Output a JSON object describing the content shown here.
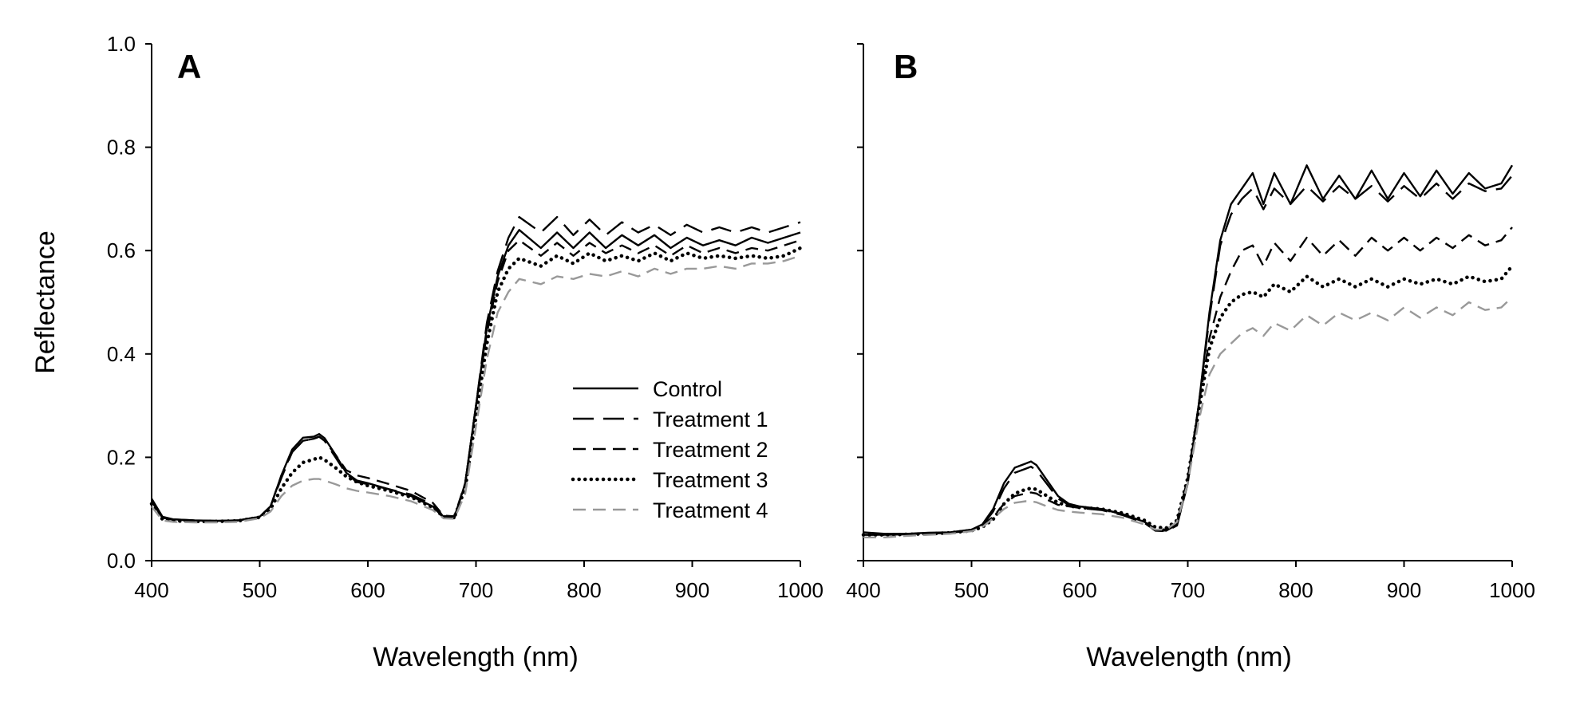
{
  "chart_data": [
    {
      "type": "line",
      "panel_label": "A",
      "xlabel": "Wavelength (nm)",
      "ylabel": "Reflectance",
      "xlim": [
        400,
        1000
      ],
      "ylim": [
        0,
        1.0
      ],
      "xticks": [
        "400",
        "500",
        "600",
        "700",
        "800",
        "900",
        "1000"
      ],
      "yticks": [
        "0.0",
        "0.2",
        "0.4",
        "0.6",
        "0.8",
        "1.0"
      ],
      "legend": {
        "placement": "lower-right",
        "entries": [
          "Control",
          "Treatment 1",
          "Treatment 2",
          "Treatment 3",
          "Treatment 4"
        ]
      },
      "x": [
        400,
        410,
        420,
        440,
        460,
        480,
        500,
        510,
        520,
        530,
        540,
        550,
        555,
        560,
        570,
        580,
        590,
        600,
        620,
        640,
        660,
        670,
        680,
        690,
        700,
        710,
        720,
        730,
        740,
        760,
        775,
        790,
        805,
        820,
        835,
        850,
        865,
        880,
        895,
        910,
        925,
        940,
        955,
        970,
        985,
        1000
      ],
      "series": [
        {
          "name": "Control",
          "style": "solid",
          "color": "#000000",
          "values": [
            0.12,
            0.085,
            0.08,
            0.078,
            0.077,
            0.078,
            0.085,
            0.105,
            0.165,
            0.215,
            0.238,
            0.24,
            0.245,
            0.237,
            0.205,
            0.17,
            0.155,
            0.15,
            0.138,
            0.125,
            0.105,
            0.083,
            0.082,
            0.15,
            0.3,
            0.45,
            0.55,
            0.61,
            0.64,
            0.605,
            0.635,
            0.605,
            0.635,
            0.605,
            0.63,
            0.61,
            0.63,
            0.605,
            0.625,
            0.61,
            0.62,
            0.61,
            0.625,
            0.615,
            0.625,
            0.635
          ]
        },
        {
          "name": "Treatment 1",
          "style": "long-dash",
          "color": "#000000",
          "values": [
            0.115,
            0.083,
            0.08,
            0.078,
            0.077,
            0.078,
            0.085,
            0.105,
            0.16,
            0.21,
            0.232,
            0.236,
            0.24,
            0.232,
            0.2,
            0.168,
            0.152,
            0.148,
            0.138,
            0.128,
            0.108,
            0.085,
            0.084,
            0.15,
            0.3,
            0.46,
            0.56,
            0.625,
            0.665,
            0.635,
            0.665,
            0.63,
            0.66,
            0.63,
            0.655,
            0.635,
            0.65,
            0.63,
            0.65,
            0.635,
            0.645,
            0.635,
            0.645,
            0.635,
            0.645,
            0.655
          ]
        },
        {
          "name": "Treatment 2",
          "style": "dash",
          "color": "#000000",
          "values": [
            0.115,
            0.083,
            0.079,
            0.077,
            0.077,
            0.078,
            0.085,
            0.105,
            0.165,
            0.21,
            0.232,
            0.236,
            0.24,
            0.232,
            0.205,
            0.175,
            0.165,
            0.16,
            0.148,
            0.135,
            0.112,
            0.087,
            0.086,
            0.15,
            0.3,
            0.44,
            0.54,
            0.6,
            0.62,
            0.59,
            0.615,
            0.59,
            0.615,
            0.595,
            0.61,
            0.595,
            0.61,
            0.59,
            0.61,
            0.595,
            0.605,
            0.595,
            0.605,
            0.6,
            0.61,
            0.62
          ]
        },
        {
          "name": "Treatment 3",
          "style": "dotted",
          "color": "#000000",
          "values": [
            0.11,
            0.08,
            0.077,
            0.076,
            0.076,
            0.077,
            0.084,
            0.1,
            0.14,
            0.17,
            0.19,
            0.196,
            0.2,
            0.195,
            0.18,
            0.163,
            0.152,
            0.145,
            0.135,
            0.123,
            0.103,
            0.085,
            0.084,
            0.14,
            0.28,
            0.42,
            0.52,
            0.565,
            0.585,
            0.57,
            0.59,
            0.575,
            0.595,
            0.58,
            0.59,
            0.58,
            0.595,
            0.58,
            0.595,
            0.585,
            0.59,
            0.585,
            0.59,
            0.585,
            0.59,
            0.605
          ]
        },
        {
          "name": "Treatment 4",
          "style": "dash",
          "color": "#999999",
          "values": [
            0.105,
            0.078,
            0.075,
            0.074,
            0.074,
            0.075,
            0.082,
            0.095,
            0.125,
            0.145,
            0.155,
            0.158,
            0.158,
            0.155,
            0.148,
            0.14,
            0.135,
            0.132,
            0.125,
            0.115,
            0.098,
            0.082,
            0.081,
            0.13,
            0.26,
            0.39,
            0.48,
            0.52,
            0.545,
            0.535,
            0.55,
            0.545,
            0.555,
            0.55,
            0.56,
            0.55,
            0.565,
            0.555,
            0.565,
            0.565,
            0.57,
            0.565,
            0.575,
            0.575,
            0.58,
            0.59
          ]
        }
      ]
    },
    {
      "type": "line",
      "panel_label": "B",
      "xlabel": "Wavelength (nm)",
      "ylabel": "",
      "xlim": [
        400,
        1000
      ],
      "ylim": [
        0,
        1.0
      ],
      "xticks": [
        "400",
        "500",
        "600",
        "700",
        "800",
        "900",
        "1000"
      ],
      "yticks": [],
      "x": [
        400,
        420,
        440,
        460,
        480,
        500,
        510,
        520,
        530,
        540,
        550,
        555,
        560,
        570,
        580,
        590,
        600,
        620,
        640,
        660,
        670,
        680,
        690,
        700,
        710,
        720,
        730,
        740,
        750,
        760,
        770,
        780,
        795,
        810,
        825,
        840,
        855,
        870,
        885,
        900,
        915,
        930,
        945,
        960,
        975,
        990,
        1000
      ],
      "series": [
        {
          "name": "Control",
          "style": "solid",
          "color": "#000000",
          "values": [
            0.055,
            0.052,
            0.052,
            0.054,
            0.055,
            0.06,
            0.07,
            0.1,
            0.15,
            0.18,
            0.188,
            0.192,
            0.185,
            0.155,
            0.125,
            0.11,
            0.105,
            0.1,
            0.09,
            0.075,
            0.06,
            0.058,
            0.07,
            0.15,
            0.3,
            0.48,
            0.62,
            0.69,
            0.72,
            0.75,
            0.69,
            0.75,
            0.69,
            0.765,
            0.7,
            0.745,
            0.7,
            0.755,
            0.7,
            0.75,
            0.705,
            0.755,
            0.71,
            0.75,
            0.72,
            0.73,
            0.765
          ]
        },
        {
          "name": "Treatment 1",
          "style": "long-dash",
          "color": "#000000",
          "values": [
            0.05,
            0.05,
            0.051,
            0.052,
            0.054,
            0.058,
            0.068,
            0.095,
            0.14,
            0.17,
            0.178,
            0.182,
            0.175,
            0.148,
            0.12,
            0.108,
            0.102,
            0.098,
            0.088,
            0.073,
            0.058,
            0.057,
            0.068,
            0.15,
            0.3,
            0.47,
            0.61,
            0.67,
            0.7,
            0.72,
            0.68,
            0.72,
            0.69,
            0.725,
            0.695,
            0.725,
            0.7,
            0.725,
            0.695,
            0.725,
            0.7,
            0.73,
            0.7,
            0.73,
            0.715,
            0.72,
            0.745
          ]
        },
        {
          "name": "Treatment 2",
          "style": "dash",
          "color": "#000000",
          "values": [
            0.05,
            0.05,
            0.051,
            0.052,
            0.054,
            0.06,
            0.068,
            0.085,
            0.11,
            0.125,
            0.13,
            0.132,
            0.13,
            0.118,
            0.108,
            0.105,
            0.102,
            0.1,
            0.09,
            0.075,
            0.062,
            0.06,
            0.075,
            0.16,
            0.3,
            0.43,
            0.51,
            0.56,
            0.6,
            0.61,
            0.57,
            0.615,
            0.58,
            0.625,
            0.59,
            0.62,
            0.59,
            0.625,
            0.6,
            0.625,
            0.6,
            0.625,
            0.605,
            0.63,
            0.61,
            0.62,
            0.645
          ]
        },
        {
          "name": "Treatment 3",
          "style": "dotted",
          "color": "#000000",
          "values": [
            0.05,
            0.05,
            0.051,
            0.052,
            0.054,
            0.058,
            0.065,
            0.08,
            0.11,
            0.13,
            0.138,
            0.14,
            0.138,
            0.125,
            0.112,
            0.106,
            0.103,
            0.1,
            0.092,
            0.078,
            0.065,
            0.063,
            0.078,
            0.16,
            0.29,
            0.41,
            0.47,
            0.5,
            0.515,
            0.52,
            0.51,
            0.535,
            0.52,
            0.55,
            0.53,
            0.545,
            0.53,
            0.545,
            0.53,
            0.545,
            0.535,
            0.545,
            0.535,
            0.55,
            0.54,
            0.545,
            0.57
          ]
        },
        {
          "name": "Treatment 4",
          "style": "dash",
          "color": "#999999",
          "values": [
            0.045,
            0.045,
            0.048,
            0.05,
            0.052,
            0.057,
            0.065,
            0.082,
            0.1,
            0.112,
            0.115,
            0.115,
            0.113,
            0.105,
            0.098,
            0.095,
            0.093,
            0.09,
            0.083,
            0.07,
            0.06,
            0.06,
            0.075,
            0.15,
            0.27,
            0.36,
            0.4,
            0.42,
            0.44,
            0.45,
            0.435,
            0.46,
            0.445,
            0.475,
            0.455,
            0.48,
            0.465,
            0.48,
            0.465,
            0.49,
            0.47,
            0.49,
            0.475,
            0.5,
            0.485,
            0.49,
            0.51
          ]
        }
      ]
    }
  ]
}
